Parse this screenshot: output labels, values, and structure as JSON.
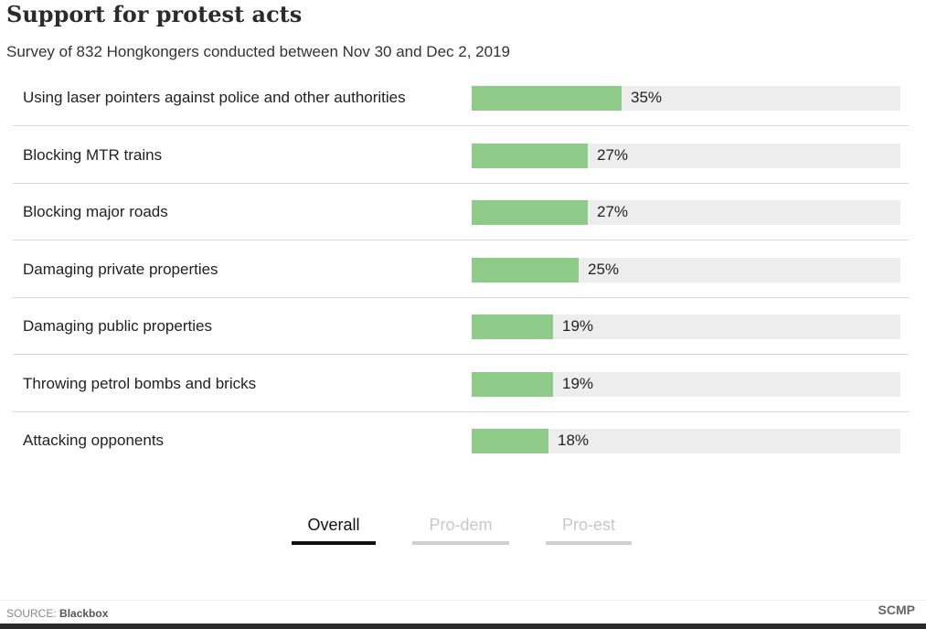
{
  "chart_data": {
    "type": "bar",
    "orientation": "horizontal",
    "title": "Support for protest acts",
    "subtitle": "Survey of 832 Hongkongers conducted between Nov 30 and Dec 2, 2019",
    "categories": [
      "Using laser pointers against police and other authorities",
      "Blocking MTR trains",
      "Blocking major roads",
      "Damaging private properties",
      "Damaging public properties",
      "Throwing petrol bombs and bricks",
      "Attacking opponents"
    ],
    "values": [
      35,
      27,
      27,
      25,
      19,
      19,
      18
    ],
    "value_labels": [
      "35%",
      "27%",
      "27%",
      "25%",
      "19%",
      "19%",
      "18%"
    ],
    "xlim": [
      0,
      100
    ],
    "bar_color": "#8ecb88",
    "track_color": "#ededed"
  },
  "tabs": [
    {
      "label": "Overall",
      "active": true
    },
    {
      "label": "Pro-dem",
      "active": false
    },
    {
      "label": "Pro-est",
      "active": false
    }
  ],
  "footer": {
    "source_prefix": "SOURCE:",
    "source_name": "Blackbox",
    "brand": "SCMP"
  }
}
